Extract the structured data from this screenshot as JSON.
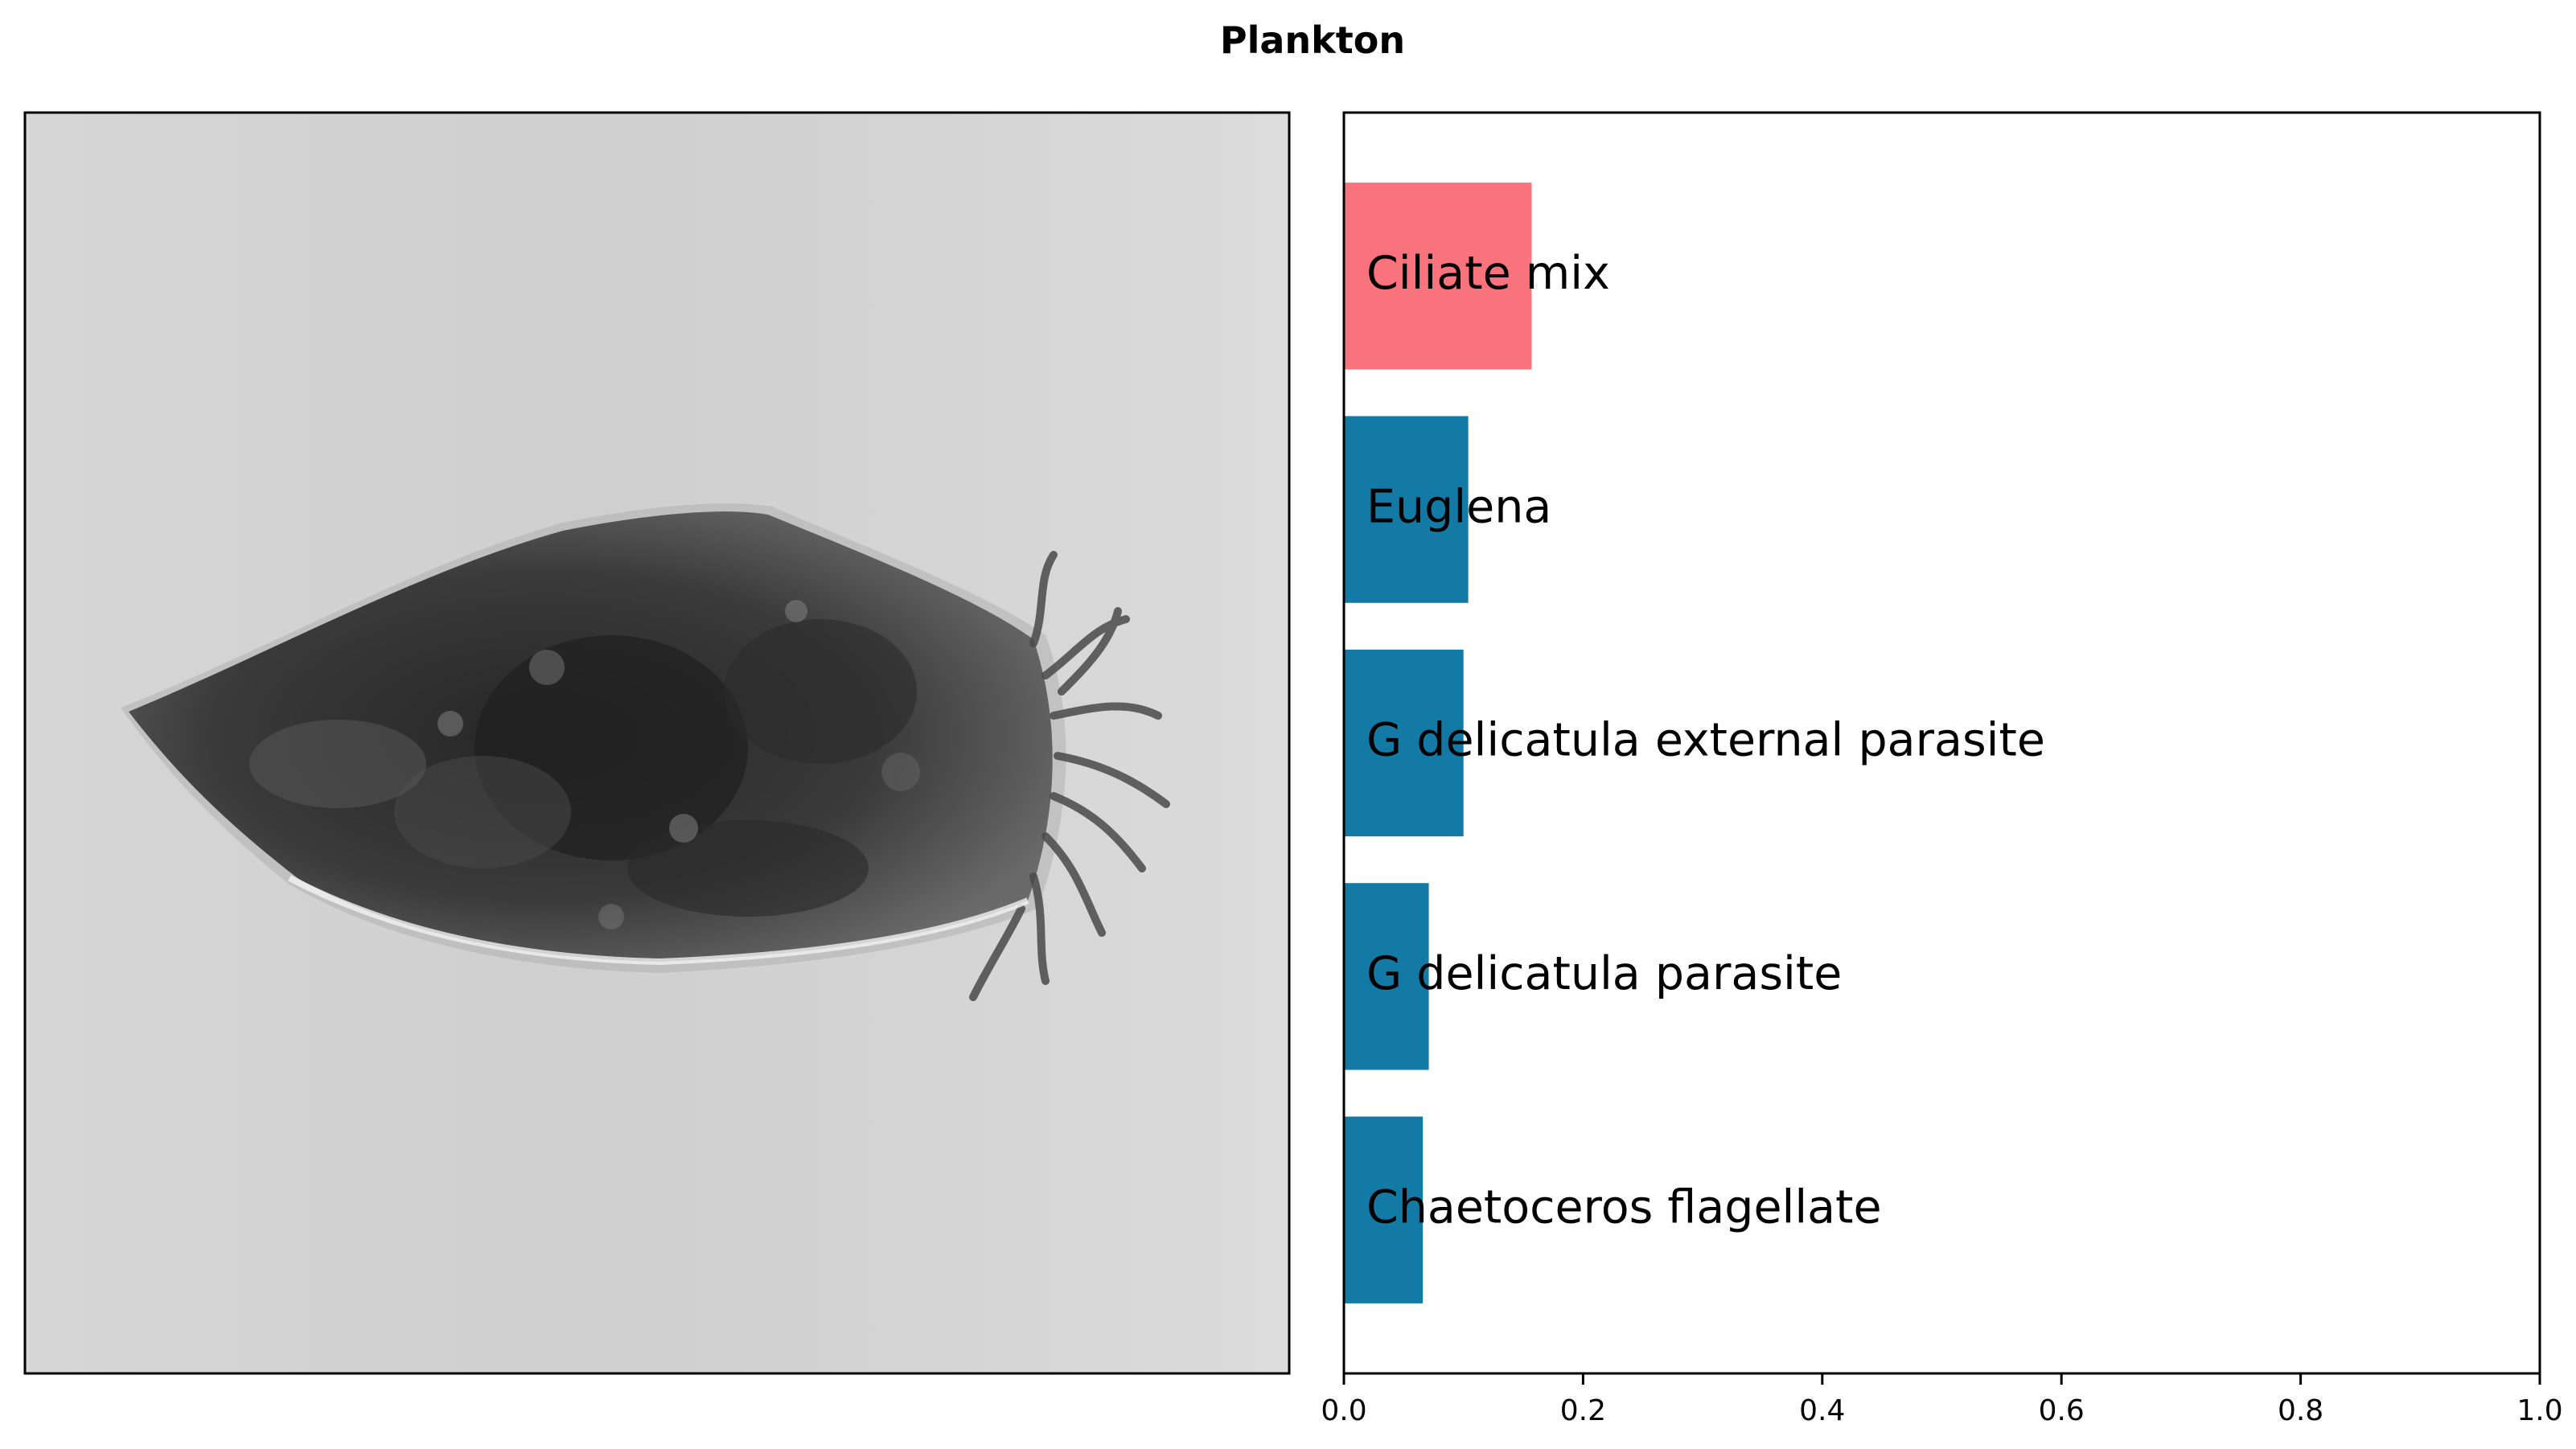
{
  "figure": {
    "title": "Plankton"
  },
  "image_panel": {
    "subject": "ciliate-micrograph",
    "background_color": "#d4d4d4",
    "organism_color": "#333333"
  },
  "chart_data": {
    "type": "bar",
    "orientation": "horizontal",
    "categories": [
      "Ciliate mix",
      "Euglena",
      "G delicatula external parasite",
      "G delicatula parasite",
      "Chaetoceros flagellate"
    ],
    "values": [
      0.157,
      0.104,
      0.1,
      0.071,
      0.066
    ],
    "colors": [
      "#f8737b",
      "#137aa5",
      "#137aa5",
      "#137aa5",
      "#137aa5"
    ],
    "xlim": [
      0,
      1
    ],
    "xticks": [
      "0.0",
      "0.2",
      "0.4",
      "0.6",
      "0.8",
      "1.0"
    ],
    "xlabel": "",
    "ylabel": "",
    "grid": false
  }
}
